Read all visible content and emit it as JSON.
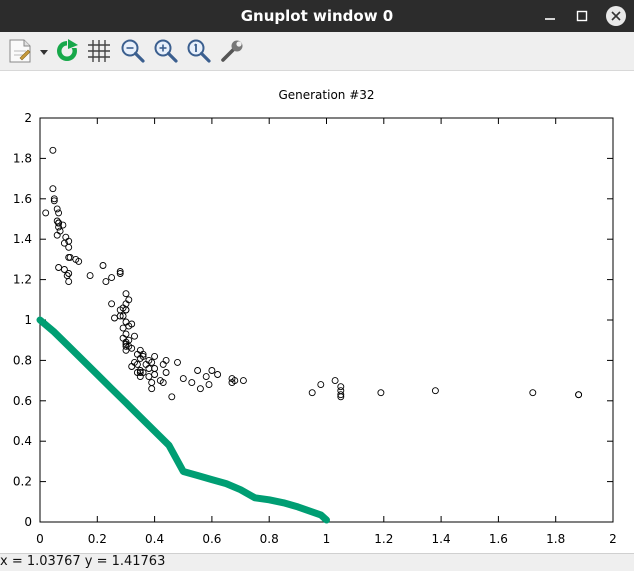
{
  "window": {
    "title": "Gnuplot window 0"
  },
  "toolbar": {
    "buttons": [
      {
        "name": "export-menu",
        "icon": "document-export-icon"
      },
      {
        "name": "replot",
        "icon": "refresh-icon"
      },
      {
        "name": "grid",
        "icon": "grid-icon"
      },
      {
        "name": "zoom-back",
        "icon": "zoom-out-icon"
      },
      {
        "name": "zoom-forward",
        "icon": "zoom-in-icon"
      },
      {
        "name": "autoscale",
        "icon": "zoom-reset-icon"
      },
      {
        "name": "settings",
        "icon": "wrench-icon"
      }
    ]
  },
  "status": {
    "text": "x = 1.03767  y = 1.41763"
  },
  "colors": {
    "front": "#009e73",
    "points": "#000000",
    "titlebar": "#2c2c2c"
  },
  "chart_data": {
    "type": "scatter",
    "title": "Generation #32",
    "xlabel": "",
    "ylabel": "",
    "xlim": [
      0,
      2
    ],
    "ylim": [
      0,
      2
    ],
    "xticks": [
      "0",
      "0.2",
      "0.4",
      "0.6",
      "0.8",
      "1",
      "1.2",
      "1.4",
      "1.6",
      "1.8",
      "2"
    ],
    "yticks": [
      "0",
      "0.2",
      "0.4",
      "0.6",
      "0.8",
      "1",
      "1.2",
      "1.4",
      "1.6",
      "1.8",
      "2"
    ],
    "grid": false,
    "legend": "none",
    "series": [
      {
        "style": "points",
        "marker": "open-circle",
        "color": "#000000",
        "x": [
          0.045,
          0.02,
          0.045,
          0.06,
          0.05,
          0.05,
          0.065,
          0.06,
          0.065,
          0.08,
          0.065,
          0.085,
          0.09,
          0.1,
          0.1,
          0.1,
          0.085,
          0.105,
          0.1,
          0.065,
          0.065,
          0.07,
          0.06,
          0.1,
          0.095,
          0.135,
          0.125,
          0.175,
          0.22,
          0.28,
          0.28,
          0.3,
          0.3,
          0.25,
          0.26,
          0.28,
          0.3,
          0.29,
          0.28,
          0.29,
          0.3,
          0.31,
          0.23,
          0.25,
          0.29,
          0.29,
          0.31,
          0.3,
          0.3,
          0.32,
          0.3,
          0.31,
          0.3,
          0.33,
          0.31,
          0.3,
          0.32,
          0.3,
          0.35,
          0.34,
          0.35,
          0.36,
          0.33,
          0.32,
          0.35,
          0.34,
          0.37,
          0.35,
          0.36,
          0.38,
          0.34,
          0.35,
          0.39,
          0.4,
          0.4,
          0.38,
          0.38,
          0.39,
          0.4,
          0.36,
          0.42,
          0.39,
          0.44,
          0.43,
          0.44,
          0.46,
          0.43,
          0.48,
          0.5,
          0.53,
          0.55,
          0.58,
          0.56,
          0.6,
          0.59,
          0.62,
          0.67,
          0.67,
          0.68,
          0.71,
          0.95,
          0.98,
          1.03,
          1.05,
          1.05,
          1.05,
          1.05,
          1.19,
          1.38,
          1.72,
          1.88,
          1.88
        ],
        "y": [
          1.84,
          1.53,
          1.65,
          1.55,
          1.6,
          1.59,
          1.53,
          1.49,
          1.48,
          1.47,
          1.26,
          1.25,
          1.41,
          1.39,
          1.36,
          1.31,
          1.38,
          1.31,
          1.19,
          1.48,
          1.46,
          1.44,
          1.42,
          1.23,
          1.22,
          1.29,
          1.3,
          1.22,
          1.27,
          1.24,
          1.23,
          1.13,
          1.08,
          1.08,
          1.01,
          1.02,
          1.05,
          1.06,
          1.05,
          1.02,
          1.05,
          1.1,
          1.19,
          1.21,
          0.96,
          0.91,
          0.9,
          0.88,
          0.87,
          0.86,
          0.85,
          0.87,
          0.89,
          0.92,
          0.97,
          0.99,
          0.98,
          0.93,
          0.85,
          0.83,
          0.81,
          0.82,
          0.79,
          0.77,
          0.75,
          0.78,
          0.78,
          0.74,
          0.74,
          0.8,
          0.74,
          0.72,
          0.69,
          0.76,
          0.73,
          0.76,
          0.72,
          0.79,
          0.82,
          0.83,
          0.7,
          0.66,
          0.74,
          0.78,
          0.8,
          0.62,
          0.69,
          0.79,
          0.71,
          0.69,
          0.75,
          0.72,
          0.66,
          0.75,
          0.68,
          0.73,
          0.71,
          0.69,
          0.7,
          0.7,
          0.64,
          0.68,
          0.7,
          0.63,
          0.62,
          0.67,
          0.65,
          0.64,
          0.65,
          0.64,
          0.63,
          0.63
        ]
      },
      {
        "style": "line",
        "color": "#009e73",
        "x": [
          0,
          0.05,
          0.1,
          0.15,
          0.2,
          0.25,
          0.3,
          0.35,
          0.4,
          0.45,
          0.5,
          0.55,
          0.6,
          0.65,
          0.7,
          0.75,
          0.8,
          0.85,
          0.9,
          0.95,
          0.98,
          1.0
        ],
        "y": [
          1.0,
          0.94,
          0.87,
          0.8,
          0.73,
          0.66,
          0.59,
          0.52,
          0.45,
          0.38,
          0.25,
          0.23,
          0.21,
          0.19,
          0.16,
          0.12,
          0.11,
          0.095,
          0.075,
          0.05,
          0.035,
          0.01
        ]
      }
    ]
  }
}
